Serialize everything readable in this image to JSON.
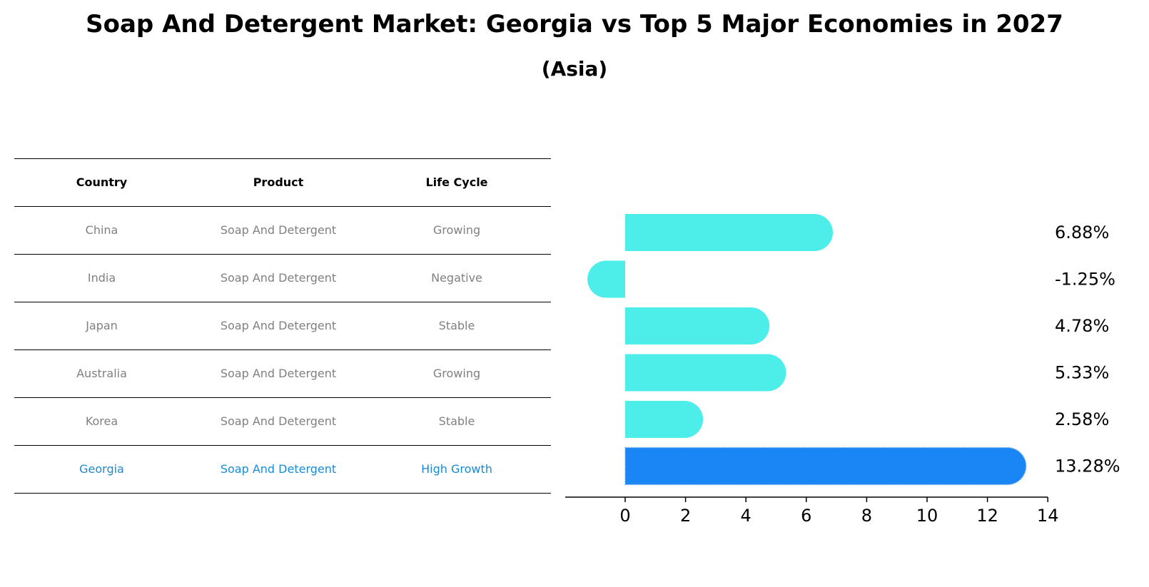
{
  "chart_data": {
    "type": "bar",
    "title": "Soap And Detergent Market: Georgia vs Top 5 Major Economies in 2027",
    "subtitle": "(Asia)",
    "orientation": "horizontal",
    "categories": [
      "China",
      "India",
      "Japan",
      "Australia",
      "Korea",
      "Georgia"
    ],
    "values": [
      6.88,
      -1.25,
      4.78,
      5.33,
      2.58,
      13.28
    ],
    "value_labels": [
      "6.88%",
      "-1.25%",
      "4.78%",
      "5.33%",
      "2.58%",
      "13.28%"
    ],
    "highlight": "Georgia",
    "xlim": [
      -2,
      14
    ],
    "xticks": [
      0,
      2,
      4,
      6,
      8,
      10,
      12,
      14
    ],
    "xtick_labels": [
      "0",
      "2",
      "4",
      "6",
      "8",
      "10",
      "12",
      "14"
    ],
    "colors": {
      "bar": "#4deeea",
      "highlight": "#1a86f5"
    }
  },
  "table": {
    "headers": [
      "Country",
      "Product",
      "Life Cycle"
    ],
    "rows": [
      [
        "China",
        "Soap And Detergent",
        "Growing"
      ],
      [
        "India",
        "Soap And Detergent",
        "Negative"
      ],
      [
        "Japan",
        "Soap And Detergent",
        "Stable"
      ],
      [
        "Australia",
        "Soap And Detergent",
        "Growing"
      ],
      [
        "Korea",
        "Soap And Detergent",
        "Stable"
      ],
      [
        "Georgia",
        "Soap And Detergent",
        "High Growth"
      ]
    ]
  }
}
